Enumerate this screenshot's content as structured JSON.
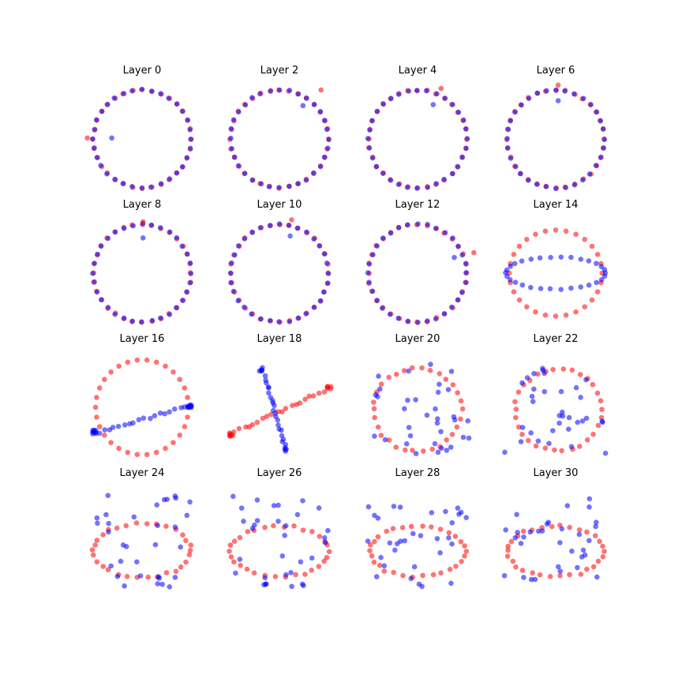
{
  "figure": {
    "grid": "4x4",
    "axes": "hidden"
  },
  "colors": {
    "series_a": "#ff0000",
    "series_b": "#0000ff",
    "alpha": 0.55
  },
  "chart_data": [
    {
      "type": "scatter",
      "title": "Layer 0",
      "shape": "ring",
      "ring_n": 32,
      "rx": 1.0,
      "ry": 1.0,
      "red_extra": [
        [
          -1.12,
          0.02
        ]
      ],
      "blue_extra": [
        [
          -0.62,
          0.02
        ]
      ]
    },
    {
      "type": "scatter",
      "title": "Layer 2",
      "shape": "ring",
      "ring_n": 32,
      "rx": 1.0,
      "ry": 1.0,
      "red_extra": [
        [
          0.85,
          1.0
        ]
      ],
      "blue_extra": [
        [
          0.48,
          0.68
        ]
      ]
    },
    {
      "type": "scatter",
      "title": "Layer 4",
      "shape": "ring",
      "ring_n": 32,
      "rx": 1.0,
      "ry": 1.0,
      "red_extra": [
        [
          0.48,
          1.03
        ]
      ],
      "blue_extra": [
        [
          0.32,
          0.7
        ]
      ]
    },
    {
      "type": "scatter",
      "title": "Layer 6",
      "shape": "ring",
      "ring_n": 32,
      "rx": 1.0,
      "ry": 1.0,
      "red_extra": [
        [
          0.05,
          1.1
        ]
      ],
      "blue_extra": [
        [
          0.05,
          0.78
        ]
      ]
    },
    {
      "type": "scatter",
      "title": "Layer 8",
      "shape": "ring",
      "ring_n": 32,
      "rx": 1.0,
      "ry": 1.0,
      "red_extra": [
        [
          0.02,
          1.05
        ]
      ],
      "blue_extra": [
        [
          0.02,
          0.72
        ]
      ]
    },
    {
      "type": "scatter",
      "title": "Layer 10",
      "shape": "ring",
      "ring_n": 32,
      "rx": 1.0,
      "ry": 1.0,
      "red_extra": [
        [
          0.25,
          1.09
        ]
      ],
      "blue_extra": [
        [
          0.22,
          0.76
        ]
      ]
    },
    {
      "type": "scatter",
      "title": "Layer 12",
      "shape": "ring",
      "ring_n": 32,
      "rx": 1.0,
      "ry": 1.0,
      "red_extra": [
        [
          1.15,
          0.42
        ]
      ],
      "blue_extra": [
        [
          0.75,
          0.32
        ]
      ]
    },
    {
      "type": "scatter",
      "title": "Layer 14",
      "shape": "rings",
      "red": {
        "n": 28,
        "rx": 0.95,
        "ry": 0.88,
        "cy": 0.0
      },
      "blue": {
        "n": 30,
        "rx": 1.02,
        "ry": 0.33,
        "cy": 0.0,
        "jitter": 0.02
      }
    },
    {
      "type": "scatter",
      "title": "Layer 16",
      "shape": "ring_plus_line",
      "red": {
        "n": 30,
        "rx": 0.95,
        "ry": 0.97
      },
      "blue_line": {
        "n": 20,
        "from": [
          -1.0,
          -0.55
        ],
        "to": [
          0.98,
          0.05
        ]
      },
      "blue_clusters": [
        {
          "x": -0.98,
          "y": -0.5,
          "n": 7
        },
        {
          "x": 0.97,
          "y": 0.02,
          "n": 7
        }
      ]
    },
    {
      "type": "scatter",
      "title": "Layer 18",
      "shape": "cross",
      "red_line": {
        "n": 22,
        "from": [
          -1.0,
          -0.55
        ],
        "to": [
          1.0,
          0.38
        ]
      },
      "blue_line": {
        "n": 24,
        "from": [
          -0.35,
          0.8
        ],
        "to": [
          0.12,
          -0.85
        ]
      },
      "red_clusters": [
        {
          "x": -0.98,
          "y": -0.55,
          "n": 5
        },
        {
          "x": 1.02,
          "y": 0.4,
          "n": 4
        }
      ],
      "blue_clusters": [
        {
          "x": -0.38,
          "y": 0.78,
          "n": 3
        },
        {
          "x": 0.15,
          "y": -0.86,
          "n": 3
        }
      ]
    },
    {
      "type": "scatter",
      "title": "Layer 20",
      "shape": "ring_plus_scatter",
      "red": {
        "n": 30,
        "rx": 0.9,
        "ry": 0.86,
        "cy": -0.05
      },
      "blue_scatter": 34
    },
    {
      "type": "scatter",
      "title": "Layer 22",
      "shape": "ring_plus_scatter",
      "red": {
        "n": 30,
        "rx": 0.88,
        "ry": 0.84,
        "cx": 0.05,
        "cy": -0.05
      },
      "blue_scatter": 34
    },
    {
      "type": "scatter",
      "title": "Layer 24",
      "shape": "ring_plus_scatter",
      "red": {
        "n": 30,
        "rx": 1.0,
        "ry": 0.55,
        "cy": -0.18
      },
      "blue_scatter": 32
    },
    {
      "type": "scatter",
      "title": "Layer 26",
      "shape": "ring_plus_scatter",
      "red": {
        "n": 30,
        "rx": 1.0,
        "ry": 0.52,
        "cy": -0.2
      },
      "blue_scatter": 32
    },
    {
      "type": "scatter",
      "title": "Layer 28",
      "shape": "ring_plus_scatter",
      "red": {
        "n": 30,
        "rx": 0.98,
        "ry": 0.52,
        "cy": -0.2
      },
      "blue_scatter": 32
    },
    {
      "type": "scatter",
      "title": "Layer 30",
      "shape": "ring_plus_scatter",
      "red": {
        "n": 30,
        "rx": 0.98,
        "ry": 0.52,
        "cy": -0.2
      },
      "blue_scatter": 32
    }
  ]
}
